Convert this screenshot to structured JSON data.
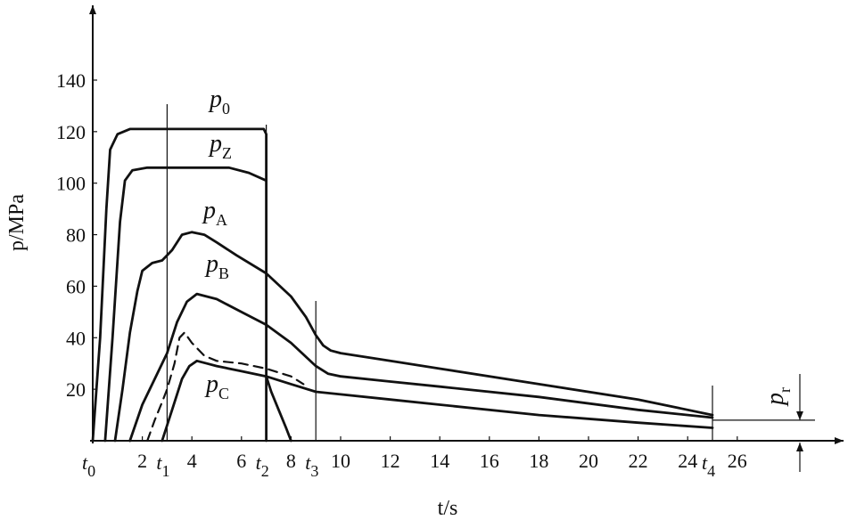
{
  "chart_data": {
    "type": "line",
    "title": "",
    "xlabel": "t/s",
    "ylabel": "p/MPa",
    "xlim": [
      0,
      28
    ],
    "ylim": [
      0,
      150
    ],
    "x_ticks": [
      2,
      4,
      6,
      8,
      10,
      12,
      14,
      16,
      18,
      20,
      22,
      24,
      26
    ],
    "y_ticks": [
      20,
      40,
      60,
      80,
      100,
      120,
      140
    ],
    "time_markers": [
      {
        "name": "t0",
        "label": "t",
        "sub": "0",
        "x": 0,
        "line": false
      },
      {
        "name": "t1",
        "label": "t",
        "sub": "1",
        "x": 3,
        "line": true
      },
      {
        "name": "t2",
        "label": "t",
        "sub": "2",
        "x": 7,
        "line": true
      },
      {
        "name": "t3",
        "label": "t",
        "sub": "3",
        "x": 9,
        "line": true
      },
      {
        "name": "t4",
        "label": "t",
        "sub": "4",
        "x": 25,
        "line": true
      }
    ],
    "series": [
      {
        "name": "p0",
        "label": "p",
        "sub": "0",
        "style": "solid",
        "x": [
          0,
          0.3,
          0.55,
          0.7,
          1.0,
          1.5,
          2.5,
          4,
          6,
          6.9,
          7.0,
          7.0
        ],
        "y": [
          0,
          40,
          90,
          113,
          119,
          121,
          121,
          121,
          121,
          121,
          119,
          0
        ]
      },
      {
        "name": "pZ",
        "label": "p",
        "sub": "Z",
        "style": "solid",
        "x": [
          0.5,
          0.8,
          1.1,
          1.3,
          1.6,
          2.2,
          3,
          4,
          5.5,
          6.3,
          7.0
        ],
        "y": [
          0,
          40,
          85,
          101,
          105,
          106,
          106,
          106,
          106,
          104,
          101
        ]
      },
      {
        "name": "pZ-tail",
        "label": "",
        "sub": "",
        "style": "solid",
        "x": [
          7.0,
          7.2,
          7.5,
          7.8,
          8.0
        ],
        "y": [
          25,
          19,
          12,
          5,
          0
        ]
      },
      {
        "name": "pA",
        "label": "p",
        "sub": "A",
        "style": "solid",
        "x": [
          0.9,
          1.2,
          1.5,
          1.8,
          2.0,
          2.4,
          2.8,
          3.2,
          3.6,
          4.0,
          4.5,
          5.0,
          5.8,
          7.0,
          8.0,
          8.6,
          9.0,
          9.3,
          9.6,
          10,
          12,
          14,
          18,
          22,
          25
        ],
        "y": [
          0,
          20,
          42,
          58,
          66,
          69,
          70,
          74,
          80,
          81,
          80,
          77,
          72,
          65,
          56,
          48,
          41,
          37,
          35,
          34,
          31,
          28,
          22,
          16,
          10
        ]
      },
      {
        "name": "pB",
        "label": "p",
        "sub": "B",
        "style": "solid",
        "x": [
          1.5,
          2.0,
          2.5,
          3.0,
          3.4,
          3.8,
          4.2,
          4.6,
          5.0,
          6.0,
          7.0,
          8.0,
          9.0,
          9.5,
          10,
          12,
          14,
          18,
          22,
          25
        ],
        "y": [
          0,
          14,
          24,
          34,
          46,
          54,
          57,
          56,
          55,
          50,
          45,
          38,
          29,
          26,
          25,
          23,
          21,
          17,
          12,
          9
        ]
      },
      {
        "name": "pC",
        "label": "p",
        "sub": "C",
        "style": "solid",
        "x": [
          2.8,
          3.2,
          3.6,
          3.9,
          4.2,
          4.6,
          5.0,
          6.0,
          7.0,
          8.0,
          9.0,
          10,
          12,
          14,
          18,
          22,
          25
        ],
        "y": [
          0,
          12,
          24,
          29,
          31,
          30,
          29,
          27,
          25,
          22,
          19,
          18,
          16,
          14,
          10,
          7,
          5
        ]
      },
      {
        "name": "dashed",
        "label": "",
        "sub": "",
        "style": "dashed",
        "x": [
          2.2,
          2.5,
          2.8,
          3.0,
          3.3,
          3.5,
          3.7,
          4.0,
          4.5,
          5.0,
          6.0,
          7.0,
          8.0,
          8.5
        ],
        "y": [
          0,
          8,
          15,
          20,
          30,
          40,
          42,
          38,
          33,
          31,
          30,
          28,
          25,
          22
        ]
      }
    ],
    "residual": {
      "label": "p",
      "sub": "r",
      "level": 8,
      "x_from": 25,
      "x_to": 28
    }
  }
}
